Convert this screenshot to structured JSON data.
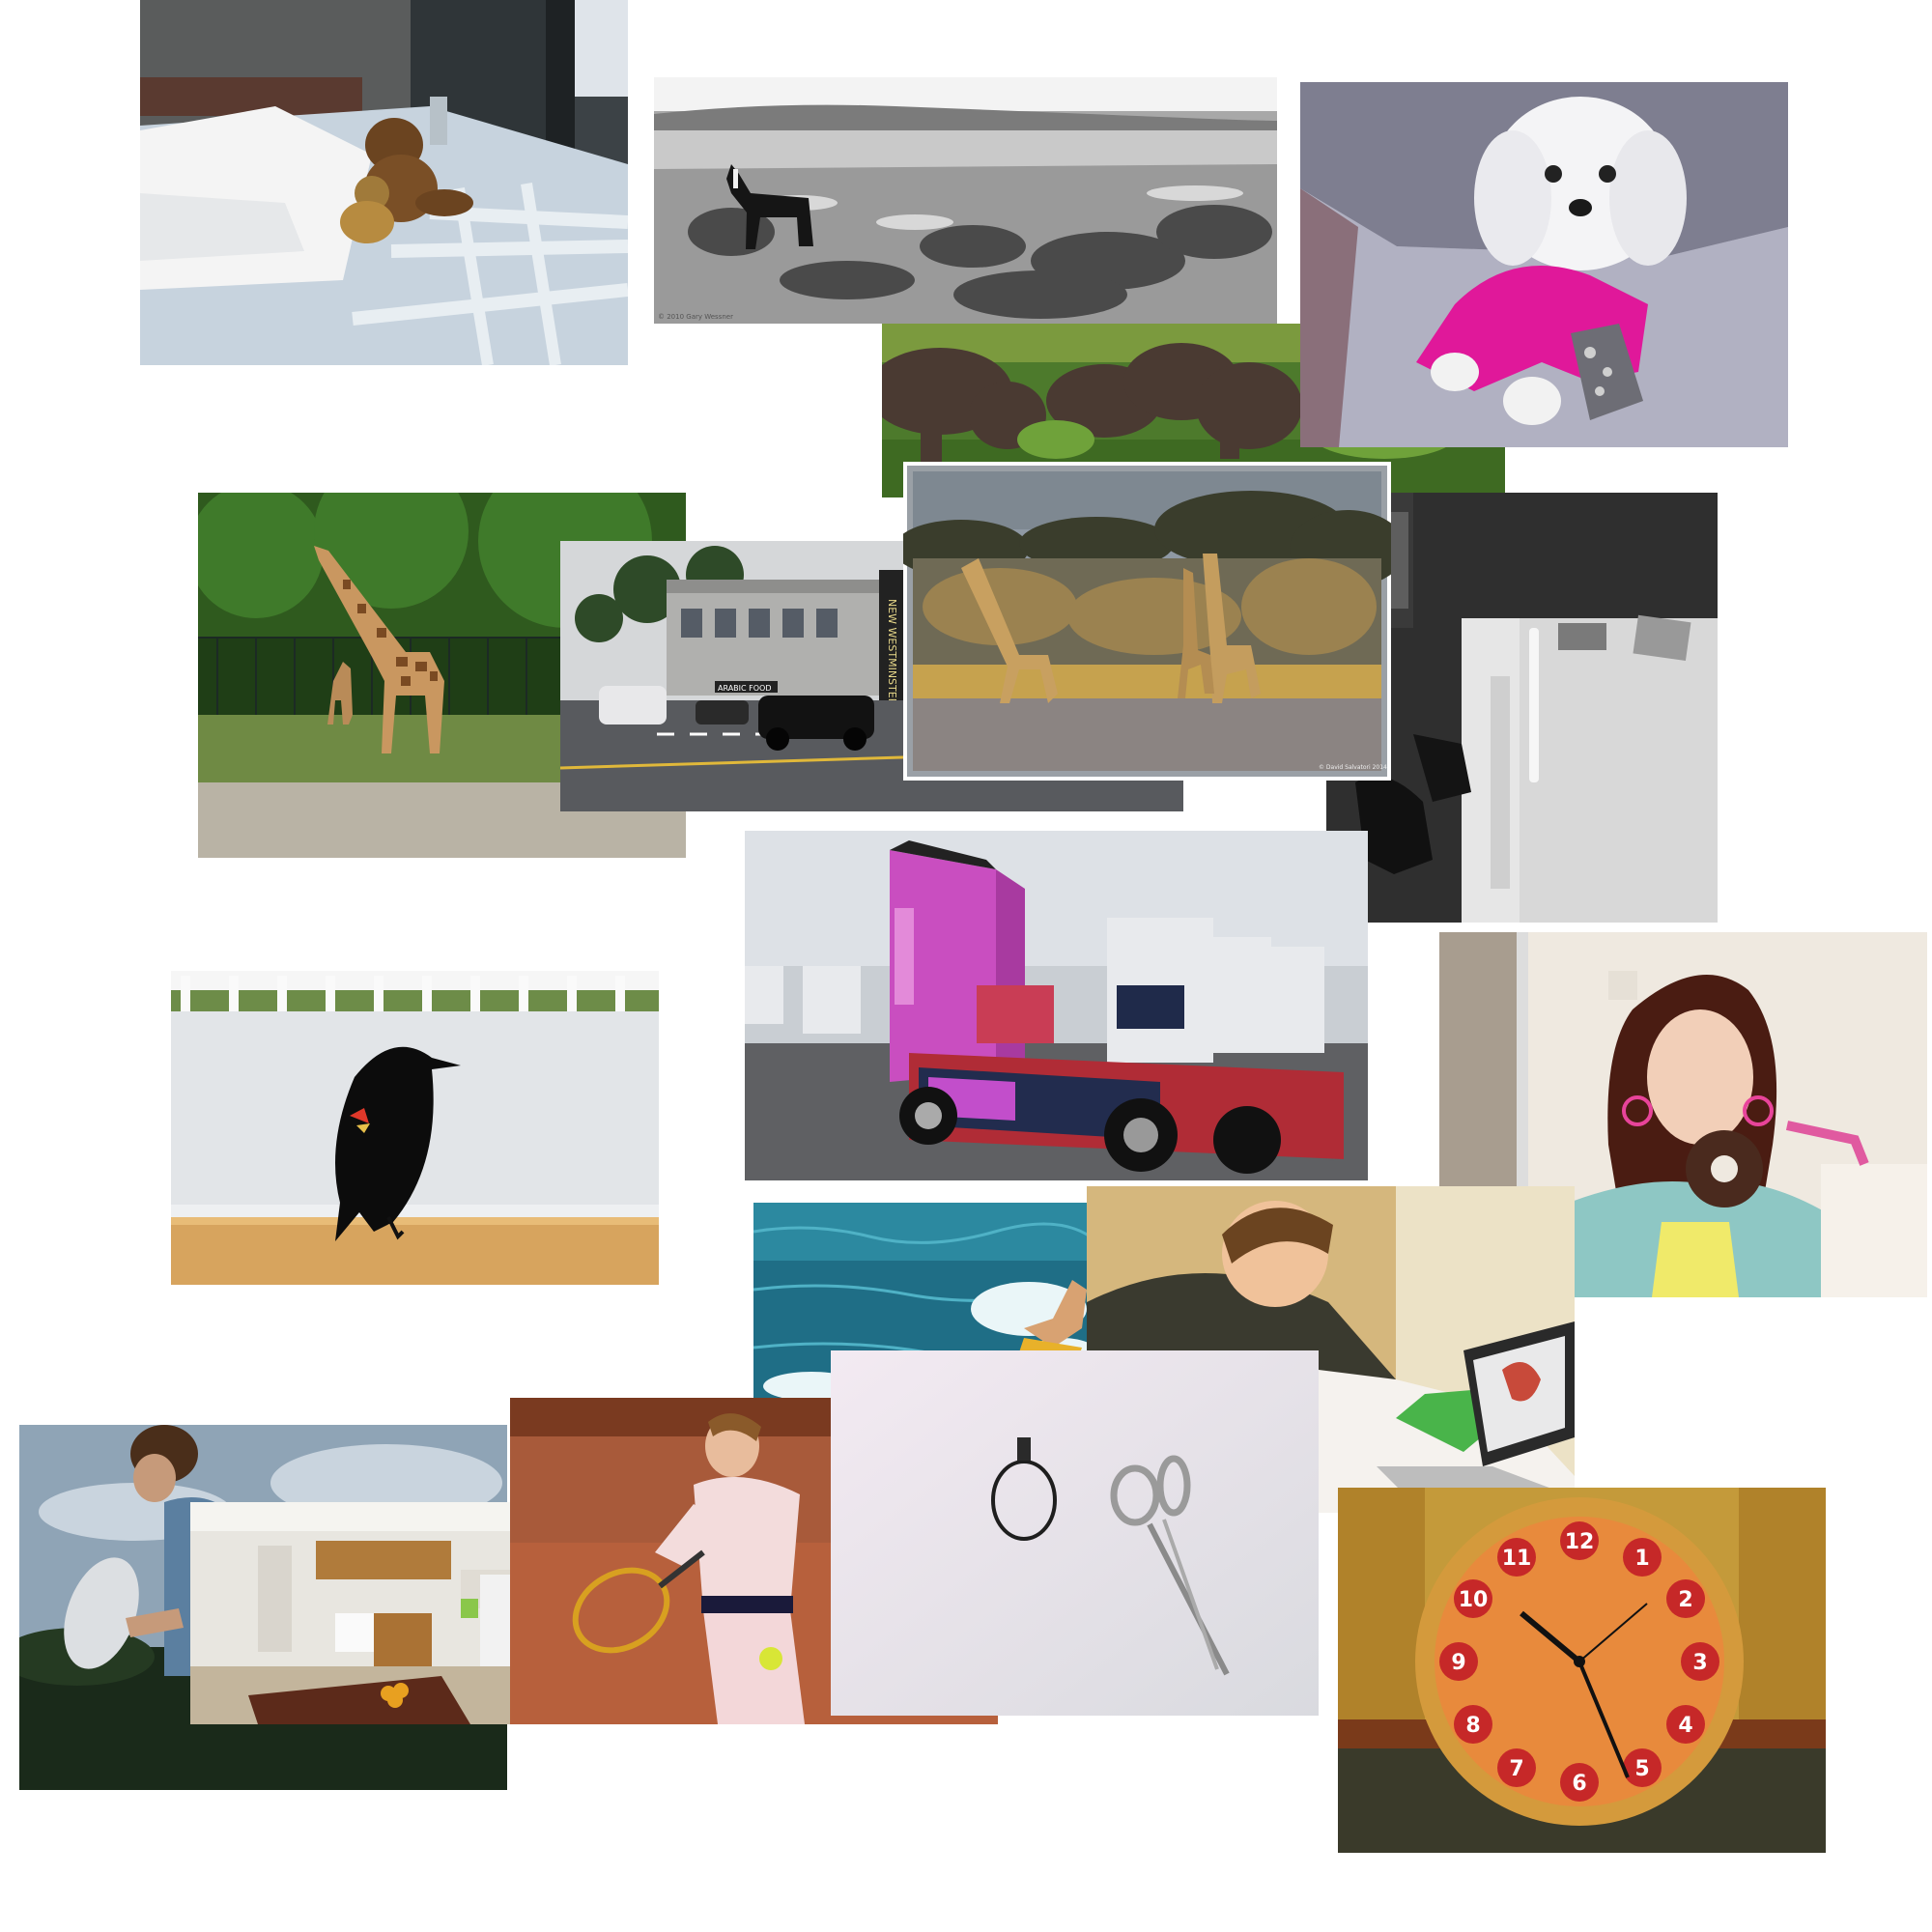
{
  "collage": {
    "background": "#ffffff",
    "photos": [
      {
        "name": "bed-teddy-bears-photo",
        "subject": "bed with teddy bears"
      },
      {
        "name": "wild-horse-photo",
        "subject": "horse in desert plains"
      },
      {
        "name": "elephants-photo",
        "subject": "elephants grazing"
      },
      {
        "name": "white-dog-pink-sweater-photo",
        "subject": "dog in pink sweater on couch"
      },
      {
        "name": "giraffe-enclosure-photo",
        "subject": "giraffes in enclosure"
      },
      {
        "name": "town-street-photo",
        "subject": "street with cars"
      },
      {
        "name": "savanna-giraffes-photo",
        "subject": "three giraffes in savanna"
      },
      {
        "name": "refrigerator-photo",
        "subject": "refrigerator with magnets"
      },
      {
        "name": "decorated-truck-photo",
        "subject": "pink painted truck"
      },
      {
        "name": "blackbird-photo",
        "subject": "red-winged blackbird on rail"
      },
      {
        "name": "woman-donut-photo",
        "subject": "woman holding donut"
      },
      {
        "name": "surfer-photo",
        "subject": "person surfing waves"
      },
      {
        "name": "woman-laptop-photo",
        "subject": "woman with laptop and baby"
      },
      {
        "name": "frisbee-player-photo",
        "subject": "man with frisbee"
      },
      {
        "name": "kitchen-photo",
        "subject": "kitchen interior"
      },
      {
        "name": "tennis-player-photo",
        "subject": "woman hitting tennis ball"
      },
      {
        "name": "scissors-ring-photo",
        "subject": "scissors and hair tie"
      },
      {
        "name": "pizza-clock-photo",
        "subject": "pizza shaped wall clock"
      }
    ],
    "signs": {
      "street_sign": "NEW WESTMINSTER",
      "shop_sign": "ARABIC FOOD",
      "photo_credit": "© David Salvatori 2014",
      "horse_credit": "© 2010 Gary Wessner"
    },
    "clock_numbers": [
      "12",
      "1",
      "2",
      "3",
      "4",
      "5",
      "6",
      "7",
      "8",
      "9",
      "10",
      "11"
    ]
  }
}
